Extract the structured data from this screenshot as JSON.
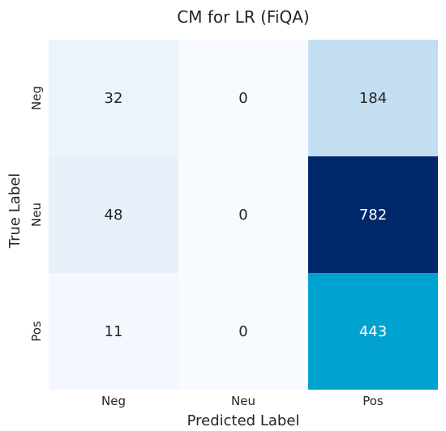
{
  "chart_data": {
    "type": "heatmap",
    "title": "CM for LR (FiQA)",
    "xlabel": "Predicted Label",
    "ylabel": "True Label",
    "x_categories": [
      "Neg",
      "Neu",
      "Pos"
    ],
    "y_categories": [
      "Neg",
      "Neu",
      "Pos"
    ],
    "values": [
      [
        32,
        0,
        184
      ],
      [
        48,
        0,
        782
      ],
      [
        11,
        0,
        443
      ]
    ],
    "colormap": "Blues",
    "vmin": 0,
    "vmax": 782,
    "colorbar": false
  }
}
